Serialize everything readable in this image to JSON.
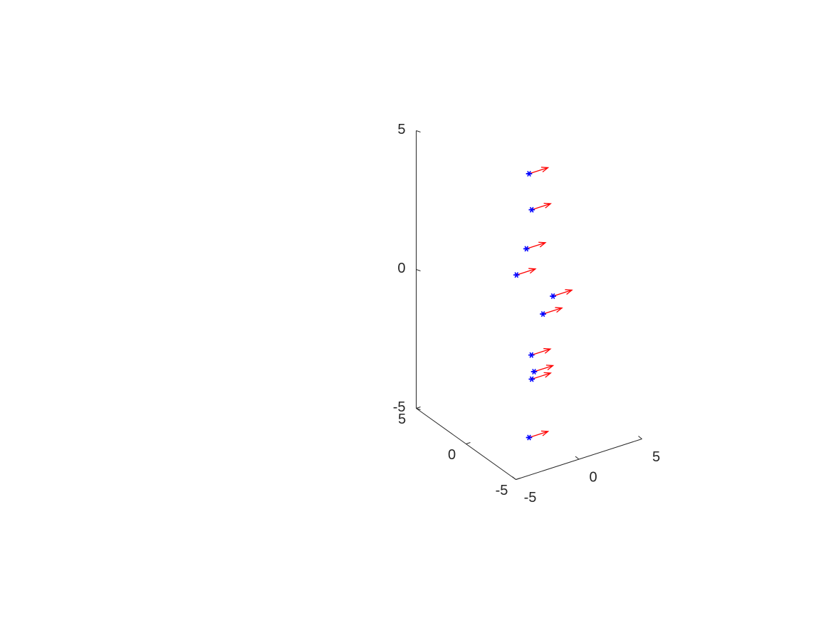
{
  "chart_data": {
    "type": "scatter",
    "subtype": "quiver3",
    "title": "",
    "xlabel": "",
    "ylabel": "",
    "zlabel": "",
    "xlim": [
      -5,
      5
    ],
    "ylim": [
      -5,
      5
    ],
    "zlim": [
      -5,
      5
    ],
    "grid": false,
    "legend": "none",
    "x_ticks": [
      "-5",
      "0",
      "5"
    ],
    "y_ticks": [
      "-5",
      "0",
      "5"
    ],
    "z_ticks": [
      "-5",
      "0",
      "5"
    ],
    "points": [
      {
        "x": 0.0,
        "y": 0.0,
        "z": 4.0
      },
      {
        "x": 1.0,
        "y": 1.0,
        "z": 2.3
      },
      {
        "x": -1.0,
        "y": -1.0,
        "z": 1.7
      },
      {
        "x": -1.0,
        "y": 0.0,
        "z": 0.5
      },
      {
        "x": 1.5,
        "y": -0.5,
        "z": -0.5
      },
      {
        "x": 1.5,
        "y": 0.5,
        "z": -1.4
      },
      {
        "x": -1.0,
        "y": -1.5,
        "z": -2.0
      },
      {
        "x": 0.0,
        "y": -0.5,
        "z": -3.0
      },
      {
        "x": 1.0,
        "y": 1.0,
        "z": -3.8
      },
      {
        "x": 0.0,
        "y": 0.0,
        "z": -5.5
      }
    ],
    "vector": {
      "u": 1.5,
      "v": 0.0,
      "w": 0.0
    },
    "marker_color": "#0000ff",
    "arrow_color": "#ff0000",
    "axis_color": "#262626"
  }
}
